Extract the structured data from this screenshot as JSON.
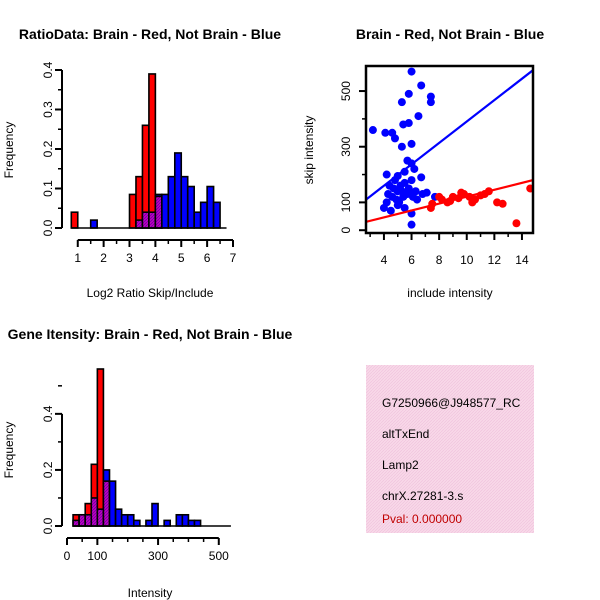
{
  "chart_data": [
    {
      "id": "ratio",
      "type": "bar",
      "title": "RatioData: Brain - Red, Not Brain - Blue",
      "xlabel": "Log2 Ratio Skip/Include",
      "ylabel": "Frequency",
      "xlim": [
        0.7,
        7.0
      ],
      "ylim": [
        0,
        0.4
      ],
      "xticks": [
        1,
        2,
        3,
        4,
        5,
        6,
        7
      ],
      "yticks": [
        0.0,
        0.1,
        0.2,
        0.3,
        0.4
      ],
      "bin_start": 0.75,
      "bin_width": 0.25,
      "series": [
        {
          "name": "Brain",
          "color": "#ff0000",
          "values": [
            0.04,
            0,
            0,
            0,
            0,
            0,
            0,
            0,
            0,
            0.085,
            0.13,
            0.26,
            0.39,
            0.08,
            0,
            0,
            0,
            0,
            0,
            0,
            0,
            0,
            0,
            0
          ]
        },
        {
          "name": "Not Brain",
          "color": "#0000ff",
          "values": [
            0,
            0,
            0,
            0.02,
            0,
            0,
            0,
            0,
            0,
            0,
            0.02,
            0.04,
            0.04,
            0.085,
            0.085,
            0.13,
            0.19,
            0.13,
            0.105,
            0.04,
            0.065,
            0.105,
            0.065,
            0
          ]
        }
      ]
    },
    {
      "id": "scatter",
      "type": "scatter",
      "title": "Brain - Red, Not Brain - Blue",
      "xlabel": "include intensity",
      "ylabel": "skip intensity",
      "xlim": [
        2.7,
        14.8
      ],
      "ylim": [
        -10,
        590
      ],
      "xticks": [
        4,
        6,
        8,
        10,
        12,
        14
      ],
      "yticks": [
        0,
        100,
        300,
        500
      ],
      "series": [
        {
          "name": "Not Brain",
          "color": "#0000ff",
          "points": [
            [
              3.2,
              360
            ],
            [
              4.1,
              350
            ],
            [
              4.6,
              350
            ],
            [
              5.3,
              460
            ],
            [
              5.8,
              490
            ],
            [
              6.0,
              570
            ],
            [
              6.7,
              520
            ],
            [
              6.5,
              410
            ],
            [
              7.4,
              480
            ],
            [
              7.4,
              460
            ],
            [
              5.4,
              380
            ],
            [
              5.8,
              385
            ],
            [
              4.8,
              330
            ],
            [
              5.3,
              300
            ],
            [
              6.0,
              310
            ],
            [
              4.2,
              200
            ],
            [
              4.8,
              180
            ],
            [
              5.0,
              195
            ],
            [
              5.5,
              210
            ],
            [
              5.7,
              250
            ],
            [
              6.0,
              240
            ],
            [
              6.2,
              220
            ],
            [
              6.7,
              190
            ],
            [
              4.4,
              160
            ],
            [
              4.7,
              150
            ],
            [
              5.0,
              140
            ],
            [
              5.2,
              160
            ],
            [
              5.5,
              170
            ],
            [
              5.8,
              150
            ],
            [
              6.0,
              180
            ],
            [
              4.3,
              130
            ],
            [
              4.6,
              120
            ],
            [
              4.9,
              110
            ],
            [
              5.1,
              100
            ],
            [
              5.4,
              120
            ],
            [
              5.7,
              130
            ],
            [
              6.1,
              120
            ],
            [
              6.4,
              110
            ],
            [
              6.8,
              130
            ],
            [
              4.0,
              80
            ],
            [
              4.5,
              70
            ],
            [
              5.0,
              90
            ],
            [
              5.5,
              80
            ],
            [
              6.0,
              60
            ],
            [
              6.0,
              20
            ],
            [
              4.2,
              100
            ],
            [
              5.3,
              140
            ],
            [
              5.9,
              135
            ],
            [
              6.3,
              140
            ],
            [
              7.1,
              135
            ],
            [
              7.7,
              120
            ]
          ]
        },
        {
          "name": "Brain",
          "color": "#ff0000",
          "points": [
            [
              7.5,
              95
            ],
            [
              8.2,
              110
            ],
            [
              8.6,
              100
            ],
            [
              9.0,
              120
            ],
            [
              9.4,
              115
            ],
            [
              9.8,
              130
            ],
            [
              10.2,
              120
            ],
            [
              10.6,
              110
            ],
            [
              11.0,
              125
            ],
            [
              11.6,
              140
            ],
            [
              12.2,
              100
            ],
            [
              12.6,
              95
            ],
            [
              13.6,
              25
            ],
            [
              14.6,
              150
            ],
            [
              7.4,
              80
            ],
            [
              8.0,
              120
            ],
            [
              8.8,
              105
            ],
            [
              9.6,
              135
            ],
            [
              10.4,
              100
            ],
            [
              11.3,
              130
            ]
          ]
        }
      ],
      "fits": [
        {
          "color": "#0000ff",
          "from": [
            2.7,
            110
          ],
          "to": [
            14.8,
            575
          ]
        },
        {
          "color": "#ff0000",
          "from": [
            2.7,
            30
          ],
          "to": [
            14.8,
            180
          ]
        }
      ]
    },
    {
      "id": "intensity",
      "type": "bar",
      "title": "Gene Itensity: Brain - Red, Not Brain - Blue",
      "xlabel": "Intensity",
      "ylabel": "Frequency",
      "xlim": [
        0,
        560
      ],
      "ylim": [
        0,
        0.56
      ],
      "xticks": [
        0,
        100,
        300,
        500
      ],
      "yticks": [
        0.0,
        0.2,
        0.4
      ],
      "bin_start": 20,
      "bin_width": 20,
      "series": [
        {
          "name": "Brain",
          "color": "#ff0000",
          "values": [
            0.04,
            0.04,
            0.08,
            0.22,
            0.56,
            0.16,
            0,
            0,
            0,
            0,
            0,
            0,
            0,
            0,
            0,
            0,
            0,
            0,
            0,
            0,
            0,
            0,
            0,
            0,
            0,
            0
          ]
        },
        {
          "name": "Not Brain",
          "color": "#0000ff",
          "values": [
            0.02,
            0.04,
            0.04,
            0.1,
            0.06,
            0.2,
            0.16,
            0.06,
            0.04,
            0.04,
            0.02,
            0,
            0.02,
            0.08,
            0,
            0.02,
            0,
            0.04,
            0.04,
            0.02,
            0.02,
            0,
            0,
            0,
            0,
            0
          ]
        }
      ]
    }
  ],
  "info_panel": {
    "probe_id": "G7250966@J948577_RC",
    "event_type": "altTxEnd",
    "gene": "Lamp2",
    "locus": "chrX.27281-3.s",
    "pval": "Pval: 0.000000",
    "bg_color": "#f8d8e8"
  }
}
